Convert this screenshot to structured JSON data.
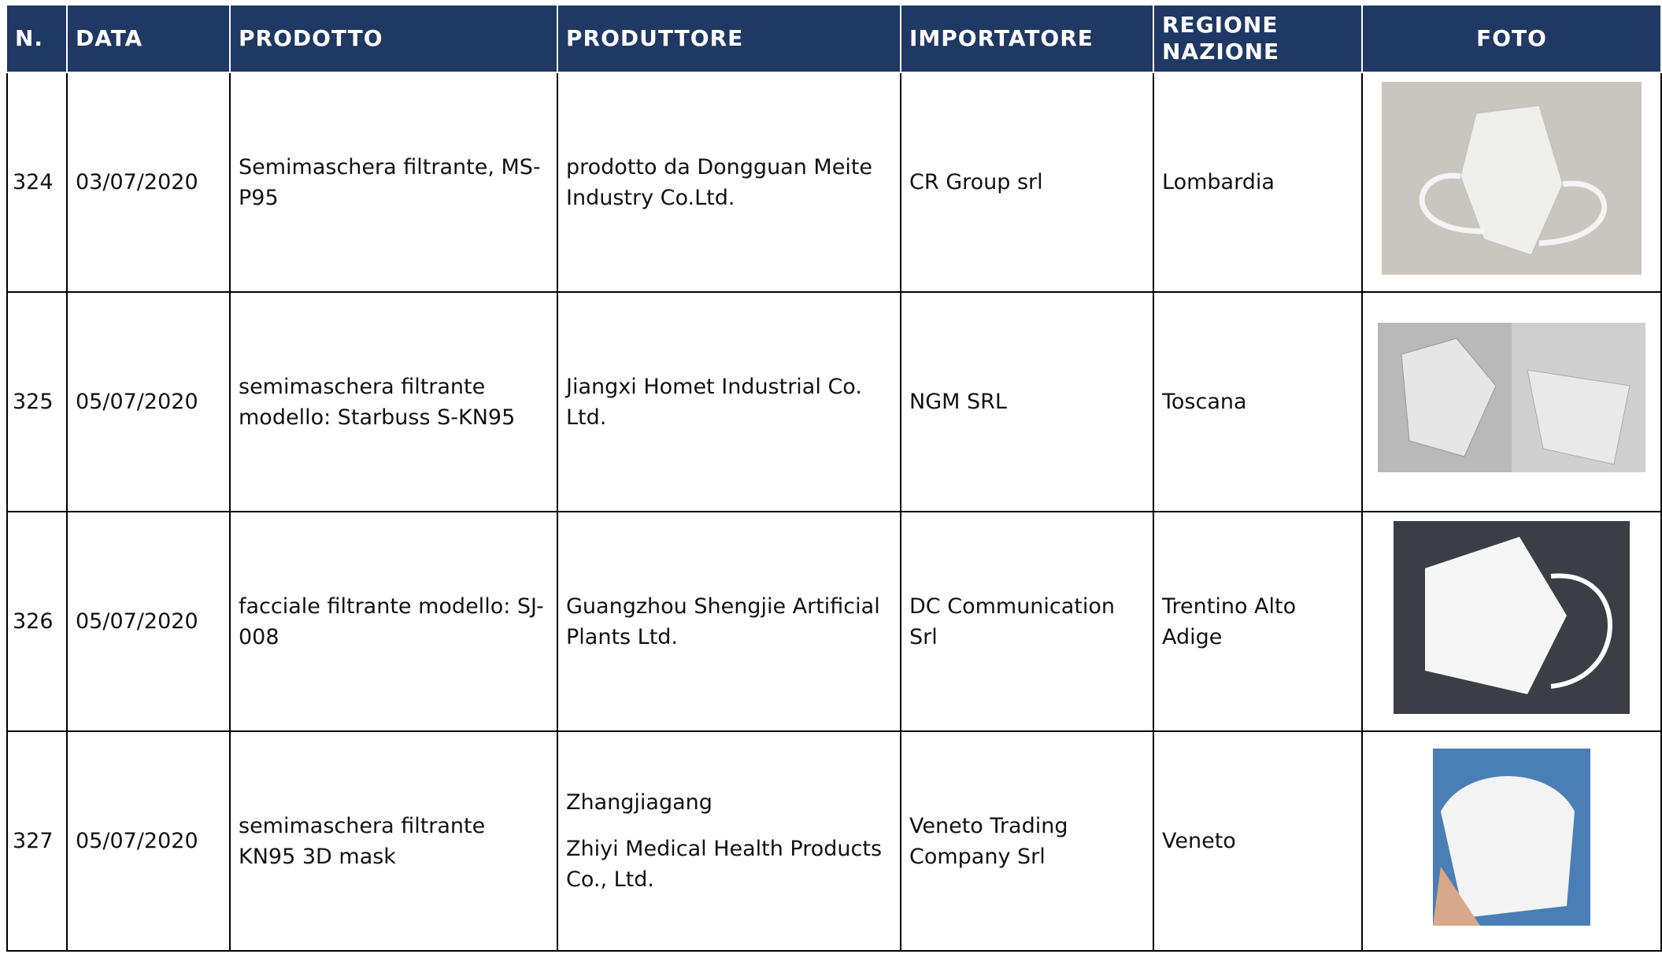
{
  "header": {
    "columns": [
      "N.",
      "DATA",
      "PRODOTTO",
      "PRODUTTORE",
      "IMPORTATORE",
      [
        "REGIONE",
        "NAZIONE"
      ],
      "FOTO"
    ]
  },
  "table": {
    "rows": [
      {
        "n": "324",
        "data": "03/07/2020",
        "prodotto": "Semimaschera filtrante, MS-P95",
        "produttore": [
          "prodotto da Dongguan Meite Industry Co.Ltd."
        ],
        "importatore": "CR Group srl",
        "regione": "Lombardia"
      },
      {
        "n": "325",
        "data": "05/07/2020",
        "prodotto": "semimaschera filtrante modello: Starbuss S-KN95",
        "produttore": [
          "Jiangxi Homet Industrial Co. Ltd."
        ],
        "importatore": "NGM SRL",
        "regione": "Toscana"
      },
      {
        "n": "326",
        "data": "05/07/2020",
        "prodotto": "facciale filtrante modello: SJ-008",
        "produttore": [
          "Guangzhou Shengjie Artificial Plants Ltd."
        ],
        "importatore": "DC Communication Srl",
        "regione": "Trentino Alto Adige"
      },
      {
        "n": "327",
        "data": "05/07/2020",
        "prodotto": "semimaschera filtrante KN95 3D mask",
        "produttore": [
          "Zhangjiagang",
          "Zhiyi Medical Health Products Co., Ltd."
        ],
        "importatore": "Veneto Trading Company Srl",
        "regione": "Veneto"
      }
    ]
  }
}
